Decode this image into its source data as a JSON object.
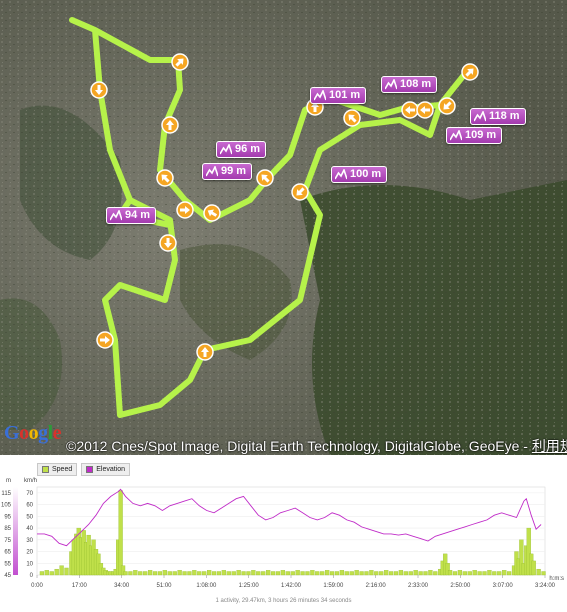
{
  "map": {
    "copyright": "©2012 Cnes/Spot Image, Digital Earth Technology, DigitalGlobe, GeoEye",
    "separator": " - ",
    "terms_link": "利用規約",
    "logo_letters": [
      "G",
      "o",
      "o",
      "g",
      "l",
      "e"
    ],
    "route_color": "#b6f24a",
    "marker_color": "#f5a623",
    "label_color": "#b04ab8",
    "elevation_labels": [
      {
        "id": "e101",
        "text": "101 m"
      },
      {
        "id": "e108",
        "text": "108 m"
      },
      {
        "id": "e118",
        "text": "118 m"
      },
      {
        "id": "e109",
        "text": "109 m"
      },
      {
        "id": "e96",
        "text": "96 m"
      },
      {
        "id": "e99",
        "text": "99 m"
      },
      {
        "id": "e100",
        "text": "100 m"
      },
      {
        "id": "e94",
        "text": "94 m"
      }
    ]
  },
  "chart": {
    "legend": [
      {
        "label": "Speed",
        "color": "#c0e04a"
      },
      {
        "label": "Elevation",
        "color": "#c02cc8"
      }
    ],
    "summary": "1 activity, 29.47km, 3 hours 26 minutes 34 seconds",
    "chart_data": {
      "type": "bar",
      "title": "",
      "x_tick_labels": [
        "0:00",
        "17:00",
        "34:00",
        "51:00",
        "1:08:00",
        "1:25:00",
        "1:42:00",
        "1:59:00",
        "2:16:00",
        "2:33:00",
        "2:50:00",
        "3:07:00",
        "3:24:00"
      ],
      "x_unit": "h:m:s",
      "xlim_minutes": [
        0,
        206.6
      ],
      "left_axis": {
        "unit": "m",
        "ticks": [
          45,
          55,
          65,
          75,
          85,
          95,
          105,
          115
        ],
        "ylim": [
          45,
          120
        ]
      },
      "right_axis": {
        "unit": "km/h",
        "ticks": [
          0,
          10,
          20,
          30,
          40,
          50,
          60,
          70
        ],
        "ylim": [
          0,
          75
        ]
      },
      "series": [
        {
          "name": "Speed",
          "kind": "bar",
          "axis": "right",
          "x_minutes": [
            2,
            4,
            6,
            8,
            10,
            12,
            14,
            15,
            16,
            17,
            18,
            19,
            20,
            21,
            22,
            23,
            24,
            25,
            26,
            27,
            28,
            29,
            30,
            31,
            32,
            33,
            34,
            35,
            36,
            38,
            40,
            42,
            44,
            46,
            48,
            50,
            52,
            54,
            56,
            58,
            60,
            62,
            64,
            66,
            68,
            70,
            72,
            74,
            76,
            78,
            80,
            82,
            84,
            86,
            88,
            90,
            92,
            94,
            96,
            98,
            100,
            102,
            104,
            106,
            108,
            110,
            112,
            114,
            116,
            118,
            120,
            122,
            124,
            126,
            128,
            130,
            132,
            134,
            136,
            138,
            140,
            142,
            144,
            146,
            148,
            150,
            152,
            154,
            156,
            158,
            160,
            162,
            164,
            165,
            166,
            167,
            168,
            170,
            172,
            174,
            176,
            178,
            180,
            182,
            184,
            186,
            188,
            190,
            192,
            194,
            195,
            196,
            197,
            198,
            199,
            200,
            201,
            202,
            204,
            206
          ],
          "values": [
            3,
            4,
            3,
            5,
            8,
            6,
            20,
            30,
            35,
            40,
            32,
            38,
            28,
            34,
            25,
            30,
            22,
            18,
            10,
            6,
            4,
            3,
            3,
            3,
            5,
            30,
            72,
            8,
            3,
            3,
            4,
            3,
            3,
            4,
            3,
            3,
            4,
            3,
            3,
            4,
            3,
            3,
            4,
            3,
            3,
            4,
            3,
            3,
            4,
            3,
            3,
            4,
            3,
            3,
            4,
            3,
            3,
            4,
            3,
            3,
            4,
            3,
            3,
            4,
            3,
            3,
            4,
            3,
            3,
            4,
            3,
            3,
            4,
            3,
            3,
            4,
            3,
            3,
            4,
            3,
            3,
            4,
            3,
            3,
            4,
            3,
            3,
            4,
            3,
            3,
            4,
            3,
            5,
            12,
            18,
            10,
            4,
            3,
            4,
            3,
            3,
            4,
            3,
            3,
            4,
            3,
            3,
            4,
            3,
            8,
            20,
            14,
            30,
            10,
            25,
            40,
            18,
            12,
            5,
            3
          ]
        },
        {
          "name": "Elevation",
          "kind": "line",
          "axis": "left",
          "x_minutes": [
            0,
            3,
            6,
            9,
            12,
            15,
            18,
            21,
            24,
            27,
            30,
            33,
            34,
            36,
            39,
            42,
            45,
            48,
            51,
            54,
            57,
            60,
            63,
            66,
            69,
            72,
            75,
            78,
            81,
            84,
            87,
            90,
            93,
            96,
            99,
            102,
            105,
            108,
            111,
            114,
            117,
            120,
            123,
            126,
            129,
            132,
            135,
            138,
            141,
            144,
            147,
            150,
            153,
            156,
            159,
            162,
            165,
            168,
            171,
            174,
            177,
            180,
            183,
            186,
            189,
            192,
            195,
            198,
            199,
            201,
            203,
            205
          ],
          "values": [
            80,
            80,
            78,
            72,
            70,
            76,
            82,
            88,
            96,
            106,
            112,
            116,
            118,
            112,
            106,
            104,
            106,
            104,
            100,
            104,
            106,
            108,
            110,
            104,
            100,
            98,
            102,
            106,
            110,
            112,
            104,
            96,
            92,
            94,
            98,
            100,
            102,
            98,
            94,
            92,
            94,
            98,
            96,
            92,
            90,
            86,
            84,
            82,
            80,
            80,
            79,
            80,
            78,
            76,
            74,
            78,
            80,
            82,
            84,
            86,
            88,
            90,
            92,
            96,
            98,
            96,
            94,
            108,
            110,
            96,
            84,
            88
          ]
        }
      ]
    }
  }
}
